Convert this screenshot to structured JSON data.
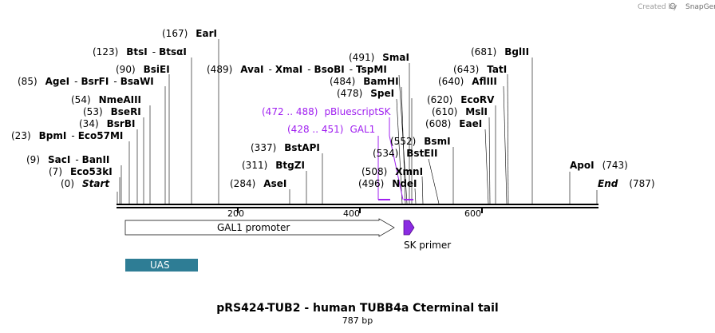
{
  "brand": {
    "prefix": "Created by",
    "name": "SnapGene"
  },
  "title": "pRS424-TUB2 - human TUBB4a Cterminal tail",
  "length_label": "787 bp",
  "length": 787,
  "axis": {
    "ticks": [
      200,
      400,
      600
    ]
  },
  "sites": [
    {
      "pos": "(0)",
      "name": "Start",
      "italic": true
    },
    {
      "pos": "(7)",
      "name": "Eco53kI"
    },
    {
      "pos": "(9)",
      "name": "SacI",
      "sep": "-",
      "name2": "BanII"
    },
    {
      "pos": "(23)",
      "name": "BpmI",
      "sep": "-",
      "name2": "Eco57MI"
    },
    {
      "pos": "(34)",
      "name": "BsrBI"
    },
    {
      "pos": "(53)",
      "name": "BseRI"
    },
    {
      "pos": "(54)",
      "name": "NmeAIII"
    },
    {
      "pos": "(85)",
      "name": "AgeI",
      "sep": "-",
      "name2": "BsrFI",
      "sep2": "-",
      "name3": "BsaWI"
    },
    {
      "pos": "(90)",
      "name": "BsiEI"
    },
    {
      "pos": "(123)",
      "name": "BtsI",
      "sep": "-",
      "name2": "BtsαI"
    },
    {
      "pos": "(167)",
      "name": "EarI"
    },
    {
      "pos": "(284)",
      "name": "AseI"
    },
    {
      "pos": "(311)",
      "name": "BtgZI"
    },
    {
      "pos": "(337)",
      "name": "BstAPI"
    },
    {
      "pos": "(489)",
      "name": "AvaI",
      "sep": "-",
      "name2": "XmaI",
      "sep2": "-",
      "name3": "BsoBI",
      "sep3": "-",
      "name4": "TspMI"
    },
    {
      "pos": "(491)",
      "name": "SmaI"
    },
    {
      "pos": "(484)",
      "name": "BamHI"
    },
    {
      "pos": "(478)",
      "name": "SpeI"
    },
    {
      "pos": "(496)",
      "name": "NdeI"
    },
    {
      "pos": "(508)",
      "name": "XmnI"
    },
    {
      "pos": "(534)",
      "name": "BstEII"
    },
    {
      "pos": "(552)",
      "name": "BsmI"
    },
    {
      "pos": "(608)",
      "name": "EaeI"
    },
    {
      "pos": "(610)",
      "name": "MslI"
    },
    {
      "pos": "(620)",
      "name": "EcoRV"
    },
    {
      "pos": "(640)",
      "name": "AflIII"
    },
    {
      "pos": "(643)",
      "name": "TatI"
    },
    {
      "pos": "(681)",
      "name": "BglII"
    },
    {
      "pos": "(743)",
      "name": "ApoI"
    },
    {
      "pos": "(787)",
      "name": "End",
      "italic": true
    }
  ],
  "features_text": [
    {
      "range": "(472 .. 488)",
      "name": "pBluescriptSK"
    },
    {
      "range": "(428 .. 451)",
      "name": "GAL1"
    }
  ],
  "tracks": {
    "promoter": "GAL1 promoter",
    "primer": "SK primer",
    "uas": "UAS"
  },
  "colors": {
    "feature": "#a020f0",
    "uas": "#2e7d95",
    "primer": "#8a2be2"
  }
}
